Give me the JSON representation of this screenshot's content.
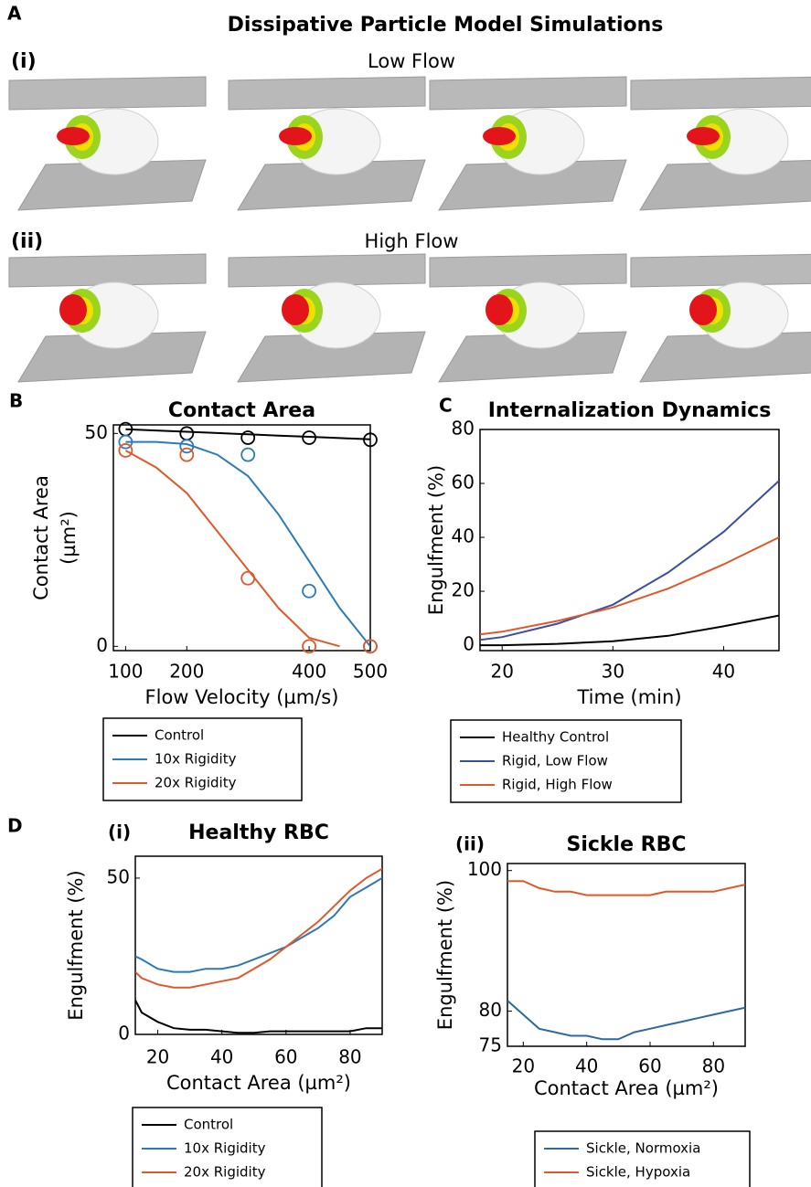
{
  "panel_a": {
    "label": "A",
    "title": "Dissipative Particle Model Simulations",
    "rows": [
      {
        "label": "(i)",
        "title": "Low Flow"
      },
      {
        "label": "(ii)",
        "title": "High Flow"
      }
    ]
  },
  "panel_d": {
    "label": "D"
  },
  "chart_data": [
    {
      "type": "scatter",
      "panel_label": "B",
      "title": "Contact Area",
      "xlabel": "Flow Velocity (µm/s)",
      "ylabel": [
        "Contact Area",
        "(µm²)"
      ],
      "x": [
        100,
        200,
        300,
        400,
        500
      ],
      "fit_x": [
        100,
        150,
        200,
        250,
        300,
        350,
        400,
        450,
        500
      ],
      "xlim": [
        80,
        500
      ],
      "xticks": [
        100,
        200,
        400,
        500
      ],
      "ylim": [
        -1,
        52
      ],
      "yticks": [
        0,
        50
      ],
      "legend": "below",
      "series": [
        {
          "name": "Control",
          "color": "#000000",
          "values": [
            51,
            50,
            49,
            49,
            48.5
          ],
          "fit": [
            51,
            50.7,
            50.4,
            50.1,
            49.8,
            49.5,
            49.2,
            48.9,
            48.6
          ]
        },
        {
          "name": "10x Rigidity",
          "color": "#2b7bba",
          "values": [
            48,
            47,
            45,
            13,
            0
          ],
          "fit": [
            48,
            48,
            47.5,
            45,
            40,
            31,
            20,
            9,
            0
          ]
        },
        {
          "name": "20x Rigidity",
          "color": "#e0582a",
          "values": [
            46,
            45,
            16,
            0,
            0
          ],
          "fit": [
            46,
            42,
            36,
            27,
            18,
            9,
            2,
            0,
            null
          ]
        }
      ]
    },
    {
      "type": "line",
      "panel_label": "C",
      "title": "Internalization Dynamics",
      "xlabel": "Time (min)",
      "ylabel": "Engulfment (%)",
      "x": [
        18,
        20,
        25,
        30,
        35,
        40,
        45
      ],
      "xlim": [
        18,
        45
      ],
      "xticks": [
        20,
        30,
        40
      ],
      "ylim": [
        -2,
        80
      ],
      "yticks": [
        0,
        20,
        40,
        60,
        80
      ],
      "legend": "below",
      "series": [
        {
          "name": "Healthy Control",
          "color": "#000000",
          "values": [
            0,
            0,
            0.5,
            1.5,
            3.5,
            7,
            11
          ]
        },
        {
          "name": "Rigid, Low Flow",
          "color": "#3a4fa0",
          "values": [
            2,
            3,
            8,
            15,
            27,
            42,
            61
          ]
        },
        {
          "name": "Rigid, High Flow",
          "color": "#e0582a",
          "values": [
            4,
            5,
            9,
            14,
            21,
            30,
            40
          ]
        }
      ]
    },
    {
      "type": "line",
      "panel_label": "(i)",
      "title": "Healthy RBC",
      "xlabel": "Contact Area (µm²)",
      "ylabel": "Engulfment (%)",
      "x": [
        13,
        15,
        20,
        25,
        30,
        35,
        40,
        45,
        50,
        55,
        60,
        65,
        70,
        75,
        80,
        85,
        90
      ],
      "xlim": [
        13,
        90
      ],
      "xticks": [
        20,
        40,
        60,
        80
      ],
      "ylim": [
        0,
        57
      ],
      "yticks": [
        0,
        50
      ],
      "legend": "below",
      "series": [
        {
          "name": "Control",
          "color": "#000000",
          "values": [
            11,
            7,
            4,
            2,
            1.5,
            1.5,
            1,
            0.5,
            0.5,
            1,
            1,
            1,
            1,
            1,
            1,
            2,
            2
          ]
        },
        {
          "name": "10x Rigidity",
          "color": "#2e78b5",
          "values": [
            25,
            24,
            21,
            20,
            20,
            21,
            21,
            22,
            24,
            26,
            28,
            31,
            34,
            38,
            44,
            47,
            50
          ]
        },
        {
          "name": "20x Rigidity",
          "color": "#e0582a",
          "values": [
            20,
            18,
            16,
            15,
            15,
            16,
            17,
            18,
            21,
            24,
            28,
            32,
            36,
            41,
            46,
            50,
            53
          ]
        }
      ]
    },
    {
      "type": "line",
      "panel_label": "(ii)",
      "title": "Sickle RBC",
      "xlabel": "Contact Area (µm²)",
      "ylabel": "Engulfment (%)",
      "x": [
        15,
        20,
        25,
        30,
        35,
        40,
        45,
        50,
        55,
        60,
        65,
        70,
        75,
        80,
        85,
        90
      ],
      "xlim": [
        15,
        90
      ],
      "xticks": [
        20,
        40,
        60,
        80
      ],
      "ylim": [
        75,
        101
      ],
      "yticks": [
        75,
        80,
        100
      ],
      "legend": "below",
      "series": [
        {
          "name": "Sickle, Normoxia",
          "color": "#2d6aa0",
          "values": [
            81.5,
            79.5,
            77.5,
            77,
            76.5,
            76.5,
            76,
            76,
            77,
            77.5,
            78,
            78.5,
            79,
            79.5,
            80,
            80.5
          ]
        },
        {
          "name": "Sickle, Hypoxia",
          "color": "#e0582a",
          "values": [
            98.5,
            98.5,
            97.5,
            97,
            97,
            96.5,
            96.5,
            96.5,
            96.5,
            96.5,
            97,
            97,
            97,
            97,
            97.5,
            98
          ]
        }
      ]
    }
  ]
}
